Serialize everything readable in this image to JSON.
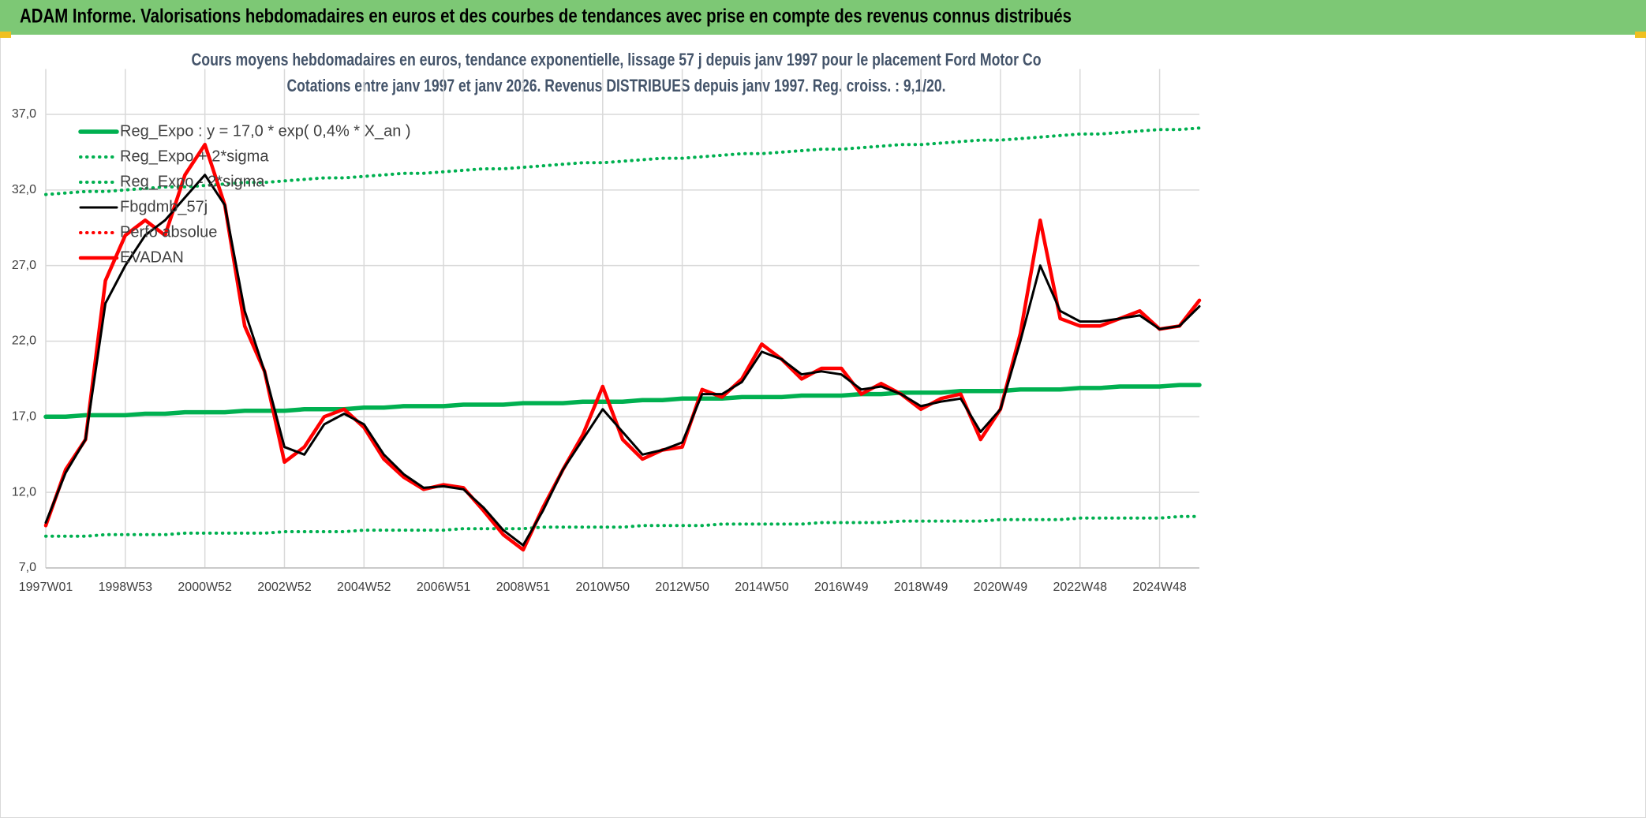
{
  "header": {
    "title": "ADAM Informe. Valorisations hebdomadaires en euros et des courbes de tendances avec prise en compte des revenus connus distribués"
  },
  "chart_data": {
    "type": "line",
    "title": "Cours moyens hebdomadaires en euros, tendance exponentielle, lissage 57 j depuis janv 1997 pour le placement Ford Motor Co",
    "subtitle": "Cotations entre janv 1997 et janv 2026. Revenus DISTRIBUES depuis janv 1997. Reg. croiss. : 9,1/20.",
    "categories": [
      "1997W01",
      null,
      null,
      null,
      "1998W53",
      null,
      null,
      null,
      "2000W52",
      null,
      null,
      null,
      "2002W52",
      null,
      null,
      null,
      "2004W52",
      null,
      null,
      null,
      "2006W51",
      null,
      null,
      null,
      "2008W51",
      null,
      null,
      null,
      "2010W50",
      null,
      null,
      null,
      "2012W50",
      null,
      null,
      null,
      "2014W50",
      null,
      null,
      null,
      "2016W49",
      null,
      null,
      null,
      "2018W49",
      null,
      null,
      null,
      "2020W49",
      null,
      null,
      null,
      "2022W48",
      null,
      null,
      null,
      "2024W48",
      null,
      null
    ],
    "ylim": [
      7,
      40
    ],
    "yticks": [
      {
        "value": 7,
        "label": "7,0"
      },
      {
        "value": 12,
        "label": "12,0"
      },
      {
        "value": 17,
        "label": "17,0"
      },
      {
        "value": 22,
        "label": "22,0"
      },
      {
        "value": 27,
        "label": "27,0"
      },
      {
        "value": 32,
        "label": "32,0"
      },
      {
        "value": 37,
        "label": "37,0"
      }
    ],
    "grid": true,
    "legend": "top-left",
    "series": [
      {
        "name": "Reg_Expo : y = 17,0 * exp( 0,4% *  X_an )",
        "color": "#00b050",
        "style": "solid",
        "values": [
          17.0,
          17.0,
          17.1,
          17.1,
          17.1,
          17.2,
          17.2,
          17.3,
          17.3,
          17.3,
          17.4,
          17.4,
          17.4,
          17.5,
          17.5,
          17.5,
          17.6,
          17.6,
          17.7,
          17.7,
          17.7,
          17.8,
          17.8,
          17.8,
          17.9,
          17.9,
          17.9,
          18.0,
          18.0,
          18.0,
          18.1,
          18.1,
          18.2,
          18.2,
          18.2,
          18.3,
          18.3,
          18.3,
          18.4,
          18.4,
          18.4,
          18.5,
          18.5,
          18.6,
          18.6,
          18.6,
          18.7,
          18.7,
          18.7,
          18.8,
          18.8,
          18.8,
          18.9,
          18.9,
          19.0,
          19.0,
          19.0,
          19.1,
          19.1
        ]
      },
      {
        "name": "Reg_Expo + 2*sigma",
        "color": "#00b050",
        "style": "dotted",
        "values": [
          31.7,
          31.8,
          31.9,
          31.9,
          32.0,
          32.1,
          32.2,
          32.2,
          32.3,
          32.4,
          32.5,
          32.5,
          32.6,
          32.7,
          32.8,
          32.8,
          32.9,
          33.0,
          33.1,
          33.1,
          33.2,
          33.3,
          33.4,
          33.4,
          33.5,
          33.6,
          33.7,
          33.8,
          33.8,
          33.9,
          34.0,
          34.1,
          34.1,
          34.2,
          34.3,
          34.4,
          34.4,
          34.5,
          34.6,
          34.7,
          34.7,
          34.8,
          34.9,
          35.0,
          35.0,
          35.1,
          35.2,
          35.3,
          35.3,
          35.4,
          35.5,
          35.6,
          35.7,
          35.7,
          35.8,
          35.9,
          36.0,
          36.0,
          36.1
        ]
      },
      {
        "name": "Reg_Expo - 2*sigma",
        "color": "#00b050",
        "style": "dotted",
        "values": [
          9.1,
          9.1,
          9.1,
          9.2,
          9.2,
          9.2,
          9.2,
          9.3,
          9.3,
          9.3,
          9.3,
          9.3,
          9.4,
          9.4,
          9.4,
          9.4,
          9.5,
          9.5,
          9.5,
          9.5,
          9.5,
          9.6,
          9.6,
          9.6,
          9.6,
          9.7,
          9.7,
          9.7,
          9.7,
          9.7,
          9.8,
          9.8,
          9.8,
          9.8,
          9.9,
          9.9,
          9.9,
          9.9,
          9.9,
          10.0,
          10.0,
          10.0,
          10.0,
          10.1,
          10.1,
          10.1,
          10.1,
          10.1,
          10.2,
          10.2,
          10.2,
          10.2,
          10.3,
          10.3,
          10.3,
          10.3,
          10.3,
          10.4,
          10.4
        ]
      },
      {
        "name": "Fbgdmb_57j",
        "color": "#000000",
        "style": "solid",
        "values": [
          10,
          13.3,
          15.5,
          24.5,
          27,
          29,
          30,
          31.5,
          33,
          31,
          24,
          20,
          15,
          14.5,
          16.5,
          17.2,
          16.5,
          14.5,
          13.2,
          12.3,
          12.4,
          12.2,
          11,
          9.5,
          8.5,
          10.8,
          13.5,
          15.5,
          17.5,
          16,
          14.5,
          14.8,
          15.3,
          18.5,
          18.5,
          19.3,
          21.3,
          20.8,
          19.8,
          20,
          19.8,
          18.8,
          19,
          18.5,
          17.7,
          18,
          18.2,
          16,
          17.5,
          22,
          27,
          24,
          23.3,
          23.3,
          23.5,
          23.7,
          22.8,
          23,
          24.3
        ]
      },
      {
        "name": "Perfo absolue",
        "color": "#ff0000",
        "style": "dotted",
        "values": [
          9.8,
          13.5,
          15.5,
          26,
          29,
          30,
          29,
          33,
          35,
          31,
          23,
          20,
          14,
          15,
          17,
          17.5,
          16.3,
          14.2,
          13,
          12.2,
          12.5,
          12.3,
          10.8,
          9.2,
          8.2,
          11,
          13.5,
          15.8,
          19,
          15.5,
          14.2,
          14.8,
          15,
          18.8,
          18.3,
          19.5,
          21.8,
          20.8,
          19.5,
          20.2,
          20.2,
          18.5,
          19.2,
          18.5,
          17.5,
          18.2,
          18.5,
          15.5,
          17.5,
          22.5,
          30,
          23.5,
          23,
          23,
          23.5,
          24,
          22.8,
          23,
          24.7
        ]
      },
      {
        "name": "EVADAN",
        "color": "#ff0000",
        "style": "solid",
        "values": [
          9.8,
          13.5,
          15.5,
          26,
          29,
          30,
          29,
          33,
          35,
          31,
          23,
          20,
          14,
          15,
          17,
          17.5,
          16.3,
          14.2,
          13,
          12.2,
          12.5,
          12.3,
          10.8,
          9.2,
          8.2,
          11,
          13.5,
          15.8,
          19,
          15.5,
          14.2,
          14.8,
          15,
          18.8,
          18.3,
          19.5,
          21.8,
          20.8,
          19.5,
          20.2,
          20.2,
          18.5,
          19.2,
          18.5,
          17.5,
          18.2,
          18.5,
          15.5,
          17.5,
          22.5,
          30,
          23.5,
          23,
          23,
          23.5,
          24,
          22.8,
          23,
          24.7
        ]
      }
    ]
  }
}
